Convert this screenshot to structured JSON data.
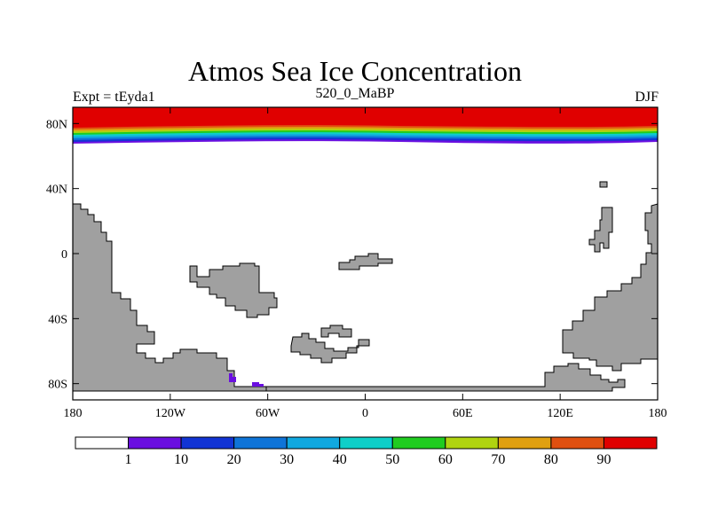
{
  "title": "Atmos Sea Ice Concentration",
  "subtitle_left": "Expt = tEyda1",
  "subtitle_center": "520_0_MaBP",
  "subtitle_right": "DJF",
  "map": {
    "lat_range": [
      -90,
      90
    ],
    "lon_range": [
      -180,
      180
    ],
    "lat_ticks": [
      {
        "value": 80,
        "label": "80N"
      },
      {
        "value": 40,
        "label": "40N"
      },
      {
        "value": 0,
        "label": "0"
      },
      {
        "value": -40,
        "label": "40S"
      },
      {
        "value": -80,
        "label": "80S"
      }
    ],
    "lon_ticks": [
      {
        "value": -180,
        "label": "180"
      },
      {
        "value": -120,
        "label": "120W"
      },
      {
        "value": -60,
        "label": "60W"
      },
      {
        "value": 0,
        "label": "0"
      },
      {
        "value": 60,
        "label": "60E"
      },
      {
        "value": 120,
        "label": "120E"
      },
      {
        "value": 180,
        "label": "180"
      }
    ],
    "land_color": "#a0a0a0",
    "ocean_color": "#ffffff"
  },
  "colorbar": {
    "colors": [
      "#ffffff",
      "#6a0fe0",
      "#1234d4",
      "#0f74d8",
      "#10a8e0",
      "#0ecfc8",
      "#20cc20",
      "#b0d410",
      "#e0a010",
      "#e05010",
      "#e00000"
    ],
    "labels": [
      "1",
      "10",
      "20",
      "30",
      "40",
      "50",
      "60",
      "70",
      "80",
      "90"
    ]
  }
}
